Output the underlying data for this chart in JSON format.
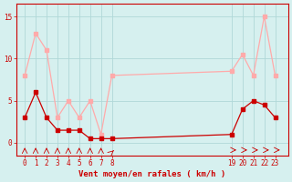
{
  "avg_x": [
    0,
    1,
    2,
    3,
    4,
    5,
    6,
    7,
    8,
    19,
    20,
    21,
    22,
    23
  ],
  "avg_y": [
    3,
    6,
    3,
    1.5,
    1.5,
    1.5,
    0.5,
    0.5,
    0.5,
    1,
    4,
    5,
    4.5,
    3
  ],
  "gust_x": [
    0,
    1,
    2,
    3,
    4,
    5,
    6,
    7,
    8,
    19,
    20,
    21,
    22,
    23
  ],
  "gust_y": [
    8,
    13,
    11,
    3,
    5,
    3,
    5,
    1,
    8,
    8.5,
    10.5,
    8,
    15,
    8
  ],
  "xtick_positions": [
    0,
    1,
    2,
    3,
    4,
    5,
    6,
    7,
    8,
    19,
    20,
    21,
    22,
    23
  ],
  "xtick_labels": [
    "0",
    "1",
    "2",
    "3",
    "4",
    "5",
    "6",
    "7",
    "8",
    "19",
    "20",
    "21",
    "22",
    "23"
  ],
  "ytick_positions": [
    0,
    5,
    10,
    15
  ],
  "ytick_labels": [
    "0",
    "5",
    "10",
    "15"
  ],
  "xlabel": "Vent moyen/en rafales ( km/h )",
  "ylim": [
    -1.5,
    16.5
  ],
  "xlim": [
    -0.8,
    24.2
  ],
  "color_avg": "#cc0000",
  "color_gust": "#ffaaaa",
  "bg_color": "#d6f0ef",
  "grid_color": "#b0d8d8",
  "spine_color": "#cc0000"
}
